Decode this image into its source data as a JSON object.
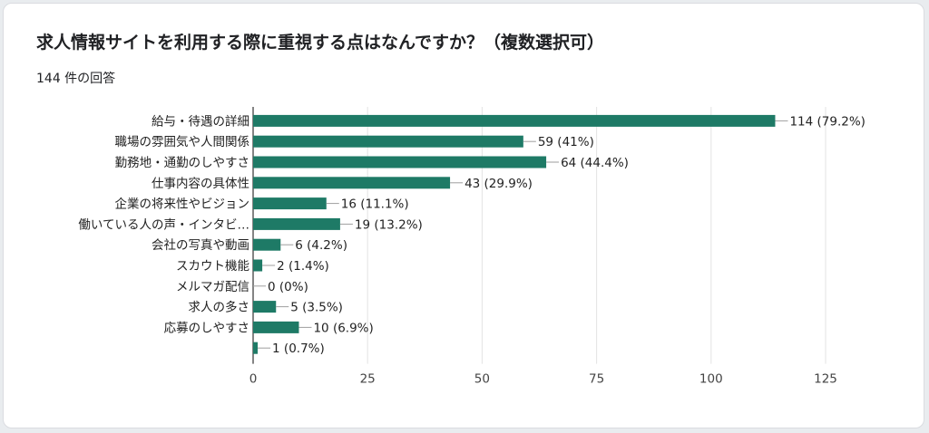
{
  "card": {
    "title": "求人情報サイトを利用する際に重視する点はなんですか？（複数選択可）",
    "response_count": "144 件の回答"
  },
  "colors": {
    "bar": "#1e7a66",
    "grid": "#e3e3e3",
    "axis": "#333333"
  },
  "chart_data": {
    "type": "bar",
    "orientation": "horizontal",
    "categories": [
      "給与・待遇の詳細",
      "職場の雰囲気や人間関係",
      "勤務地・通勤のしやすさ",
      "仕事内容の具体性",
      "企業の将来性やビジョン",
      "働いている人の声・インタビ…",
      "会社の写真や動画",
      "スカウト機能",
      "メルマガ配信",
      "求人の多さ",
      "応募のしやすさ",
      ""
    ],
    "values": [
      114,
      59,
      64,
      43,
      16,
      19,
      6,
      2,
      0,
      5,
      10,
      1
    ],
    "value_labels": [
      "114 (79.2%)",
      "59 (41%)",
      "64 (44.4%)",
      "43 (29.9%)",
      "16 (11.1%)",
      "19 (13.2%)",
      "6 (4.2%)",
      "2 (1.4%)",
      "0 (0%)",
      "5 (3.5%)",
      "10 (6.9%)",
      "1 (0.7%)"
    ],
    "x_ticks": [
      0,
      25,
      50,
      75,
      100,
      125
    ],
    "xlim": [
      0,
      125
    ],
    "grid": true,
    "legend": "none"
  }
}
